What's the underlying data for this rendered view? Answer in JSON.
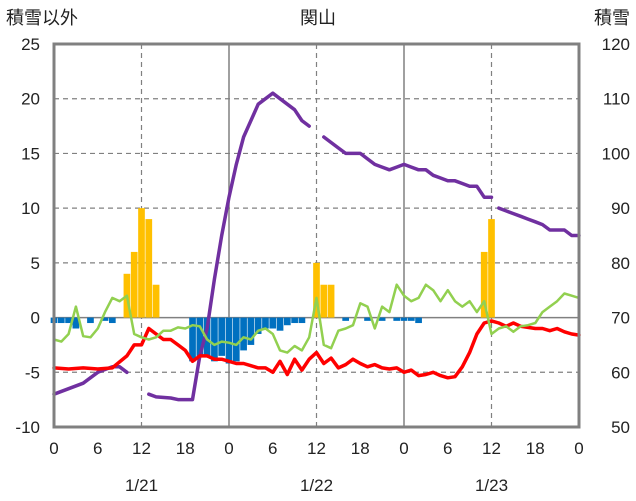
{
  "chart_data": {
    "type": "line+bar",
    "title": "関山",
    "left_axis_title": "積雪以外",
    "right_axis_title": "積雪",
    "left_ylim": [
      -10,
      25
    ],
    "left_yticks": [
      25,
      20,
      15,
      10,
      5,
      0,
      -5,
      -10
    ],
    "right_ylim": [
      50,
      120
    ],
    "right_yticks": [
      120,
      110,
      100,
      90,
      80,
      70,
      60,
      50
    ],
    "x_range_hours": [
      0,
      72
    ],
    "x_tick_labels": [
      "0",
      "6",
      "12",
      "18",
      "0",
      "6",
      "12",
      "18",
      "0",
      "6",
      "12",
      "18",
      "0"
    ],
    "date_labels": [
      "1/21",
      "1/22",
      "1/23"
    ],
    "grid": "dashed at each 12h and y=0",
    "colors": {
      "snow_depth": "#7030a0",
      "temperature": "#ff0000",
      "wind_or_other": "#92d050",
      "precip_positive": "#ffc000",
      "precip_negative": "#0070c0"
    },
    "series": [
      {
        "key": "snow_depth",
        "axis": "right",
        "segments": [
          [
            [
              0,
              56
            ],
            [
              2,
              57
            ],
            [
              4,
              58
            ],
            [
              6,
              60
            ],
            [
              8,
              61
            ],
            [
              9,
              61
            ],
            [
              10,
              60
            ]
          ],
          [
            [
              13,
              56
            ],
            [
              14,
              55.5
            ],
            [
              16,
              55.3
            ],
            [
              17,
              55
            ],
            [
              18,
              55
            ],
            [
              19,
              55
            ],
            [
              20,
              63
            ],
            [
              21,
              68
            ],
            [
              22,
              77
            ],
            [
              23,
              85
            ],
            [
              24,
              92
            ],
            [
              25,
              98
            ],
            [
              26,
              103
            ],
            [
              28,
              109
            ],
            [
              30,
              111
            ],
            [
              31,
              110
            ],
            [
              32,
              109
            ],
            [
              33,
              108
            ],
            [
              34,
              106
            ],
            [
              35,
              105
            ]
          ],
          [
            [
              37,
              103
            ],
            [
              38,
              102
            ],
            [
              39,
              101
            ],
            [
              40,
              100
            ],
            [
              42,
              100
            ],
            [
              43,
              99
            ],
            [
              44,
              98
            ],
            [
              45,
              97.5
            ],
            [
              46,
              97
            ],
            [
              47,
              97.5
            ],
            [
              48,
              98
            ],
            [
              49,
              97.5
            ],
            [
              50,
              97
            ],
            [
              51,
              97
            ],
            [
              52,
              96
            ],
            [
              53,
              95.5
            ],
            [
              54,
              95
            ],
            [
              55,
              95
            ],
            [
              56,
              94.5
            ],
            [
              57,
              94
            ],
            [
              58,
              94
            ],
            [
              59,
              92
            ],
            [
              60,
              92
            ]
          ],
          [
            [
              61,
              90
            ],
            [
              62,
              89.5
            ],
            [
              63,
              89
            ],
            [
              64,
              88.5
            ],
            [
              65,
              88
            ],
            [
              66,
              87.5
            ],
            [
              67,
              87
            ],
            [
              68,
              86
            ],
            [
              69,
              86
            ],
            [
              70,
              86
            ],
            [
              71,
              85
            ],
            [
              72,
              85
            ]
          ]
        ]
      },
      {
        "key": "temperature",
        "axis": "left",
        "points": [
          [
            0,
            -4.6
          ],
          [
            2,
            -4.7
          ],
          [
            4,
            -4.6
          ],
          [
            6,
            -4.7
          ],
          [
            8,
            -4.6
          ],
          [
            10,
            -3.5
          ],
          [
            11,
            -2.5
          ],
          [
            12,
            -2.5
          ],
          [
            13,
            -1.0
          ],
          [
            14,
            -1.5
          ],
          [
            15,
            -2.0
          ],
          [
            16,
            -2.0
          ],
          [
            17,
            -2.5
          ],
          [
            18,
            -3.0
          ],
          [
            19,
            -4.0
          ],
          [
            20,
            -3.5
          ],
          [
            21,
            -3.5
          ],
          [
            22,
            -3.8
          ],
          [
            23,
            -3.8
          ],
          [
            24,
            -4.0
          ],
          [
            25,
            -4.2
          ],
          [
            26,
            -4.2
          ],
          [
            27,
            -4.4
          ],
          [
            28,
            -4.6
          ],
          [
            29,
            -4.6
          ],
          [
            30,
            -5.0
          ],
          [
            31,
            -4.0
          ],
          [
            32,
            -5.2
          ],
          [
            33,
            -3.8
          ],
          [
            34,
            -4.8
          ],
          [
            35,
            -3.8
          ],
          [
            36,
            -3.2
          ],
          [
            37,
            -4.2
          ],
          [
            38,
            -3.7
          ],
          [
            39,
            -4.6
          ],
          [
            40,
            -4.3
          ],
          [
            41,
            -3.8
          ],
          [
            42,
            -4.2
          ],
          [
            43,
            -4.5
          ],
          [
            44,
            -4.3
          ],
          [
            45,
            -4.6
          ],
          [
            46,
            -4.7
          ],
          [
            47,
            -4.6
          ],
          [
            48,
            -5.0
          ],
          [
            49,
            -4.8
          ],
          [
            50,
            -5.3
          ],
          [
            51,
            -5.2
          ],
          [
            52,
            -5.0
          ],
          [
            53,
            -5.3
          ],
          [
            54,
            -5.5
          ],
          [
            55,
            -5.4
          ],
          [
            56,
            -4.5
          ],
          [
            57,
            -3.2
          ],
          [
            58,
            -1.5
          ],
          [
            59,
            -0.5
          ],
          [
            60,
            -0.3
          ],
          [
            61,
            -0.5
          ],
          [
            62,
            -0.8
          ],
          [
            63,
            -0.5
          ],
          [
            64,
            -0.8
          ],
          [
            65,
            -0.9
          ],
          [
            66,
            -1.0
          ],
          [
            67,
            -1.0
          ],
          [
            68,
            -1.2
          ],
          [
            69,
            -1.0
          ],
          [
            70,
            -1.3
          ],
          [
            71,
            -1.5
          ],
          [
            72,
            -1.6
          ]
        ]
      },
      {
        "key": "wind_or_other",
        "axis": "left",
        "points": [
          [
            0,
            -2
          ],
          [
            1,
            -2.2
          ],
          [
            2,
            -1.5
          ],
          [
            3,
            1.0
          ],
          [
            4,
            -1.7
          ],
          [
            5,
            -1.8
          ],
          [
            6,
            -1.0
          ],
          [
            7,
            0.5
          ],
          [
            8,
            1.8
          ],
          [
            9,
            1.5
          ],
          [
            10,
            2.0
          ],
          [
            11,
            -1.5
          ],
          [
            12,
            -1.8
          ],
          [
            13,
            -2.0
          ],
          [
            14,
            -1.8
          ],
          [
            15,
            -1.2
          ],
          [
            16,
            -1.2
          ],
          [
            17,
            -0.9
          ],
          [
            18,
            -1.0
          ],
          [
            19,
            -0.7
          ],
          [
            20,
            -0.8
          ],
          [
            21,
            -2.0
          ],
          [
            22,
            -2.5
          ],
          [
            23,
            -2.2
          ],
          [
            24,
            -2.3
          ],
          [
            25,
            -2.5
          ],
          [
            26,
            -1.8
          ],
          [
            27,
            -2.0
          ],
          [
            28,
            -1.2
          ],
          [
            29,
            -1.0
          ],
          [
            30,
            -1.5
          ],
          [
            31,
            -3.0
          ],
          [
            32,
            -3.2
          ],
          [
            33,
            -2.6
          ],
          [
            34,
            -3.0
          ],
          [
            35,
            -1.8
          ],
          [
            36,
            1.8
          ],
          [
            37,
            -2.5
          ],
          [
            38,
            -2.8
          ],
          [
            39,
            -1.2
          ],
          [
            40,
            -1.0
          ],
          [
            41,
            -0.7
          ],
          [
            42,
            1.3
          ],
          [
            43,
            1.0
          ],
          [
            44,
            -1.0
          ],
          [
            45,
            1.0
          ],
          [
            46,
            0.5
          ],
          [
            47,
            3.0
          ],
          [
            48,
            2.0
          ],
          [
            49,
            1.5
          ],
          [
            50,
            1.8
          ],
          [
            51,
            3.0
          ],
          [
            52,
            2.5
          ],
          [
            53,
            1.5
          ],
          [
            54,
            2.5
          ],
          [
            55,
            1.5
          ],
          [
            56,
            1.0
          ],
          [
            57,
            1.5
          ],
          [
            58,
            0.5
          ],
          [
            59,
            1.5
          ],
          [
            60,
            -1.5
          ],
          [
            61,
            -1.0
          ],
          [
            62,
            -0.8
          ],
          [
            63,
            -1.3
          ],
          [
            64,
            -0.8
          ],
          [
            65,
            -0.7
          ],
          [
            66,
            -0.5
          ],
          [
            67,
            0.5
          ],
          [
            68,
            1.0
          ],
          [
            69,
            1.5
          ],
          [
            70,
            2.2
          ],
          [
            71,
            2.0
          ],
          [
            72,
            1.8
          ]
        ]
      }
    ],
    "bars_positive": [
      [
        10,
        4
      ],
      [
        11,
        6
      ],
      [
        12,
        10
      ],
      [
        13,
        9
      ],
      [
        14,
        3
      ],
      [
        36,
        5
      ],
      [
        37,
        3
      ],
      [
        38,
        3
      ],
      [
        59,
        6
      ],
      [
        60,
        9
      ]
    ],
    "bars_negative": [
      [
        0,
        -0.5
      ],
      [
        1,
        -0.5
      ],
      [
        2,
        -0.5
      ],
      [
        3,
        -1.0
      ],
      [
        5,
        -0.5
      ],
      [
        7,
        -0.3
      ],
      [
        8,
        -0.5
      ],
      [
        19,
        -4.0
      ],
      [
        20,
        -3.5
      ],
      [
        21,
        -3.5
      ],
      [
        22,
        -4.0
      ],
      [
        23,
        -3.5
      ],
      [
        24,
        -4.2
      ],
      [
        25,
        -4.0
      ],
      [
        26,
        -3.0
      ],
      [
        27,
        -2.5
      ],
      [
        28,
        -1.5
      ],
      [
        29,
        -1.0
      ],
      [
        30,
        -1.0
      ],
      [
        31,
        -1.2
      ],
      [
        32,
        -0.7
      ],
      [
        33,
        -0.5
      ],
      [
        34,
        -0.5
      ],
      [
        40,
        -0.3
      ],
      [
        43,
        -0.3
      ],
      [
        45,
        -0.3
      ],
      [
        47,
        -0.3
      ],
      [
        48,
        -0.3
      ],
      [
        49,
        -0.3
      ],
      [
        50,
        -0.5
      ]
    ]
  }
}
